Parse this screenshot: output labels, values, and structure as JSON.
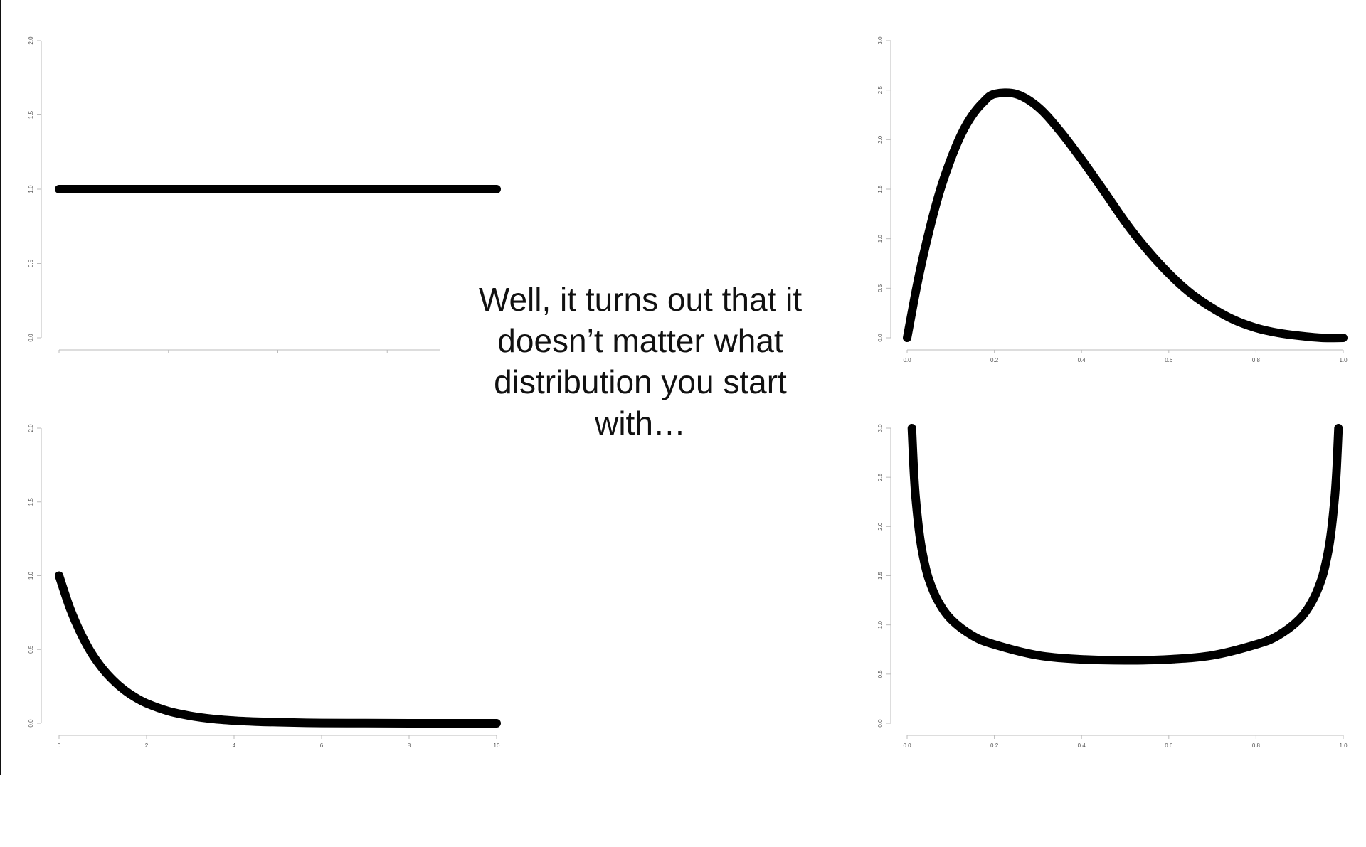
{
  "caption": {
    "lines": [
      "Well, it turns out that it",
      "doesn’t matter what",
      "distribution you start",
      "with…"
    ]
  },
  "colors": {
    "curve": "#000000",
    "axis": "#bbbbbb",
    "text": "#111111",
    "tick_text": "#555555"
  },
  "chart_data": [
    {
      "type": "line",
      "position": "top-left",
      "xlim": [
        0,
        10
      ],
      "ylim": [
        0,
        2
      ],
      "yticks": [
        "0.0",
        "0.5",
        "1.0",
        "1.5",
        "2.0"
      ],
      "xticks": [
        "",
        "",
        "",
        "",
        ""
      ],
      "x": [
        0,
        10
      ],
      "y": [
        1,
        1
      ]
    },
    {
      "type": "line",
      "position": "bottom-left",
      "xlim": [
        0,
        10
      ],
      "ylim": [
        0,
        2
      ],
      "yticks": [
        "0.0",
        "0.5",
        "1.0",
        "1.5",
        "2.0"
      ],
      "xticks": [
        "0",
        "2",
        "4",
        "6",
        "8",
        "10"
      ],
      "x": [
        0,
        0.25,
        0.5,
        0.75,
        1,
        1.25,
        1.5,
        1.75,
        2,
        2.5,
        3,
        3.5,
        4,
        4.5,
        5,
        6,
        7,
        8,
        9,
        10
      ],
      "y": [
        1.0,
        0.779,
        0.607,
        0.472,
        0.368,
        0.287,
        0.223,
        0.174,
        0.135,
        0.082,
        0.05,
        0.03,
        0.018,
        0.011,
        0.007,
        0.002,
        0.001,
        0.0,
        0.0,
        0.0
      ]
    },
    {
      "type": "line",
      "position": "top-right",
      "xlim": [
        0,
        1
      ],
      "ylim": [
        0,
        3
      ],
      "yticks": [
        "0.0",
        "0.5",
        "1.0",
        "1.5",
        "2.0",
        "2.5",
        "3.0"
      ],
      "xticks": [
        "0.0",
        "0.2",
        "0.4",
        "0.6",
        "0.8",
        "1.0"
      ],
      "x": [
        0,
        0.025,
        0.05,
        0.075,
        0.1,
        0.125,
        0.15,
        0.175,
        0.2,
        0.25,
        0.3,
        0.35,
        0.4,
        0.45,
        0.5,
        0.55,
        0.6,
        0.65,
        0.7,
        0.75,
        0.8,
        0.85,
        0.9,
        0.95,
        1
      ],
      "y": [
        0.0,
        0.58,
        1.07,
        1.48,
        1.8,
        2.06,
        2.25,
        2.38,
        2.46,
        2.46,
        2.33,
        2.09,
        1.8,
        1.49,
        1.17,
        0.89,
        0.65,
        0.45,
        0.3,
        0.18,
        0.1,
        0.05,
        0.02,
        0.0,
        0.0
      ]
    },
    {
      "type": "line",
      "position": "bottom-right",
      "xlim": [
        0,
        1
      ],
      "ylim": [
        0,
        3
      ],
      "yticks": [
        "0.0",
        "0.5",
        "1.0",
        "1.5",
        "2.0",
        "2.5",
        "3.0"
      ],
      "xticks": [
        "0.0",
        "0.2",
        "0.4",
        "0.6",
        "0.8",
        "1.0"
      ],
      "x": [
        0.011,
        0.015,
        0.02,
        0.03,
        0.04,
        0.05,
        0.07,
        0.1,
        0.15,
        0.2,
        0.3,
        0.4,
        0.5,
        0.6,
        0.7,
        0.8,
        0.85,
        0.9,
        0.93,
        0.95,
        0.96,
        0.97,
        0.98,
        0.985,
        0.989
      ],
      "y": [
        3.0,
        2.6,
        2.27,
        1.87,
        1.63,
        1.46,
        1.25,
        1.06,
        0.89,
        0.8,
        0.69,
        0.65,
        0.64,
        0.65,
        0.69,
        0.8,
        0.89,
        1.06,
        1.25,
        1.46,
        1.63,
        1.87,
        2.27,
        2.6,
        3.0
      ]
    }
  ]
}
